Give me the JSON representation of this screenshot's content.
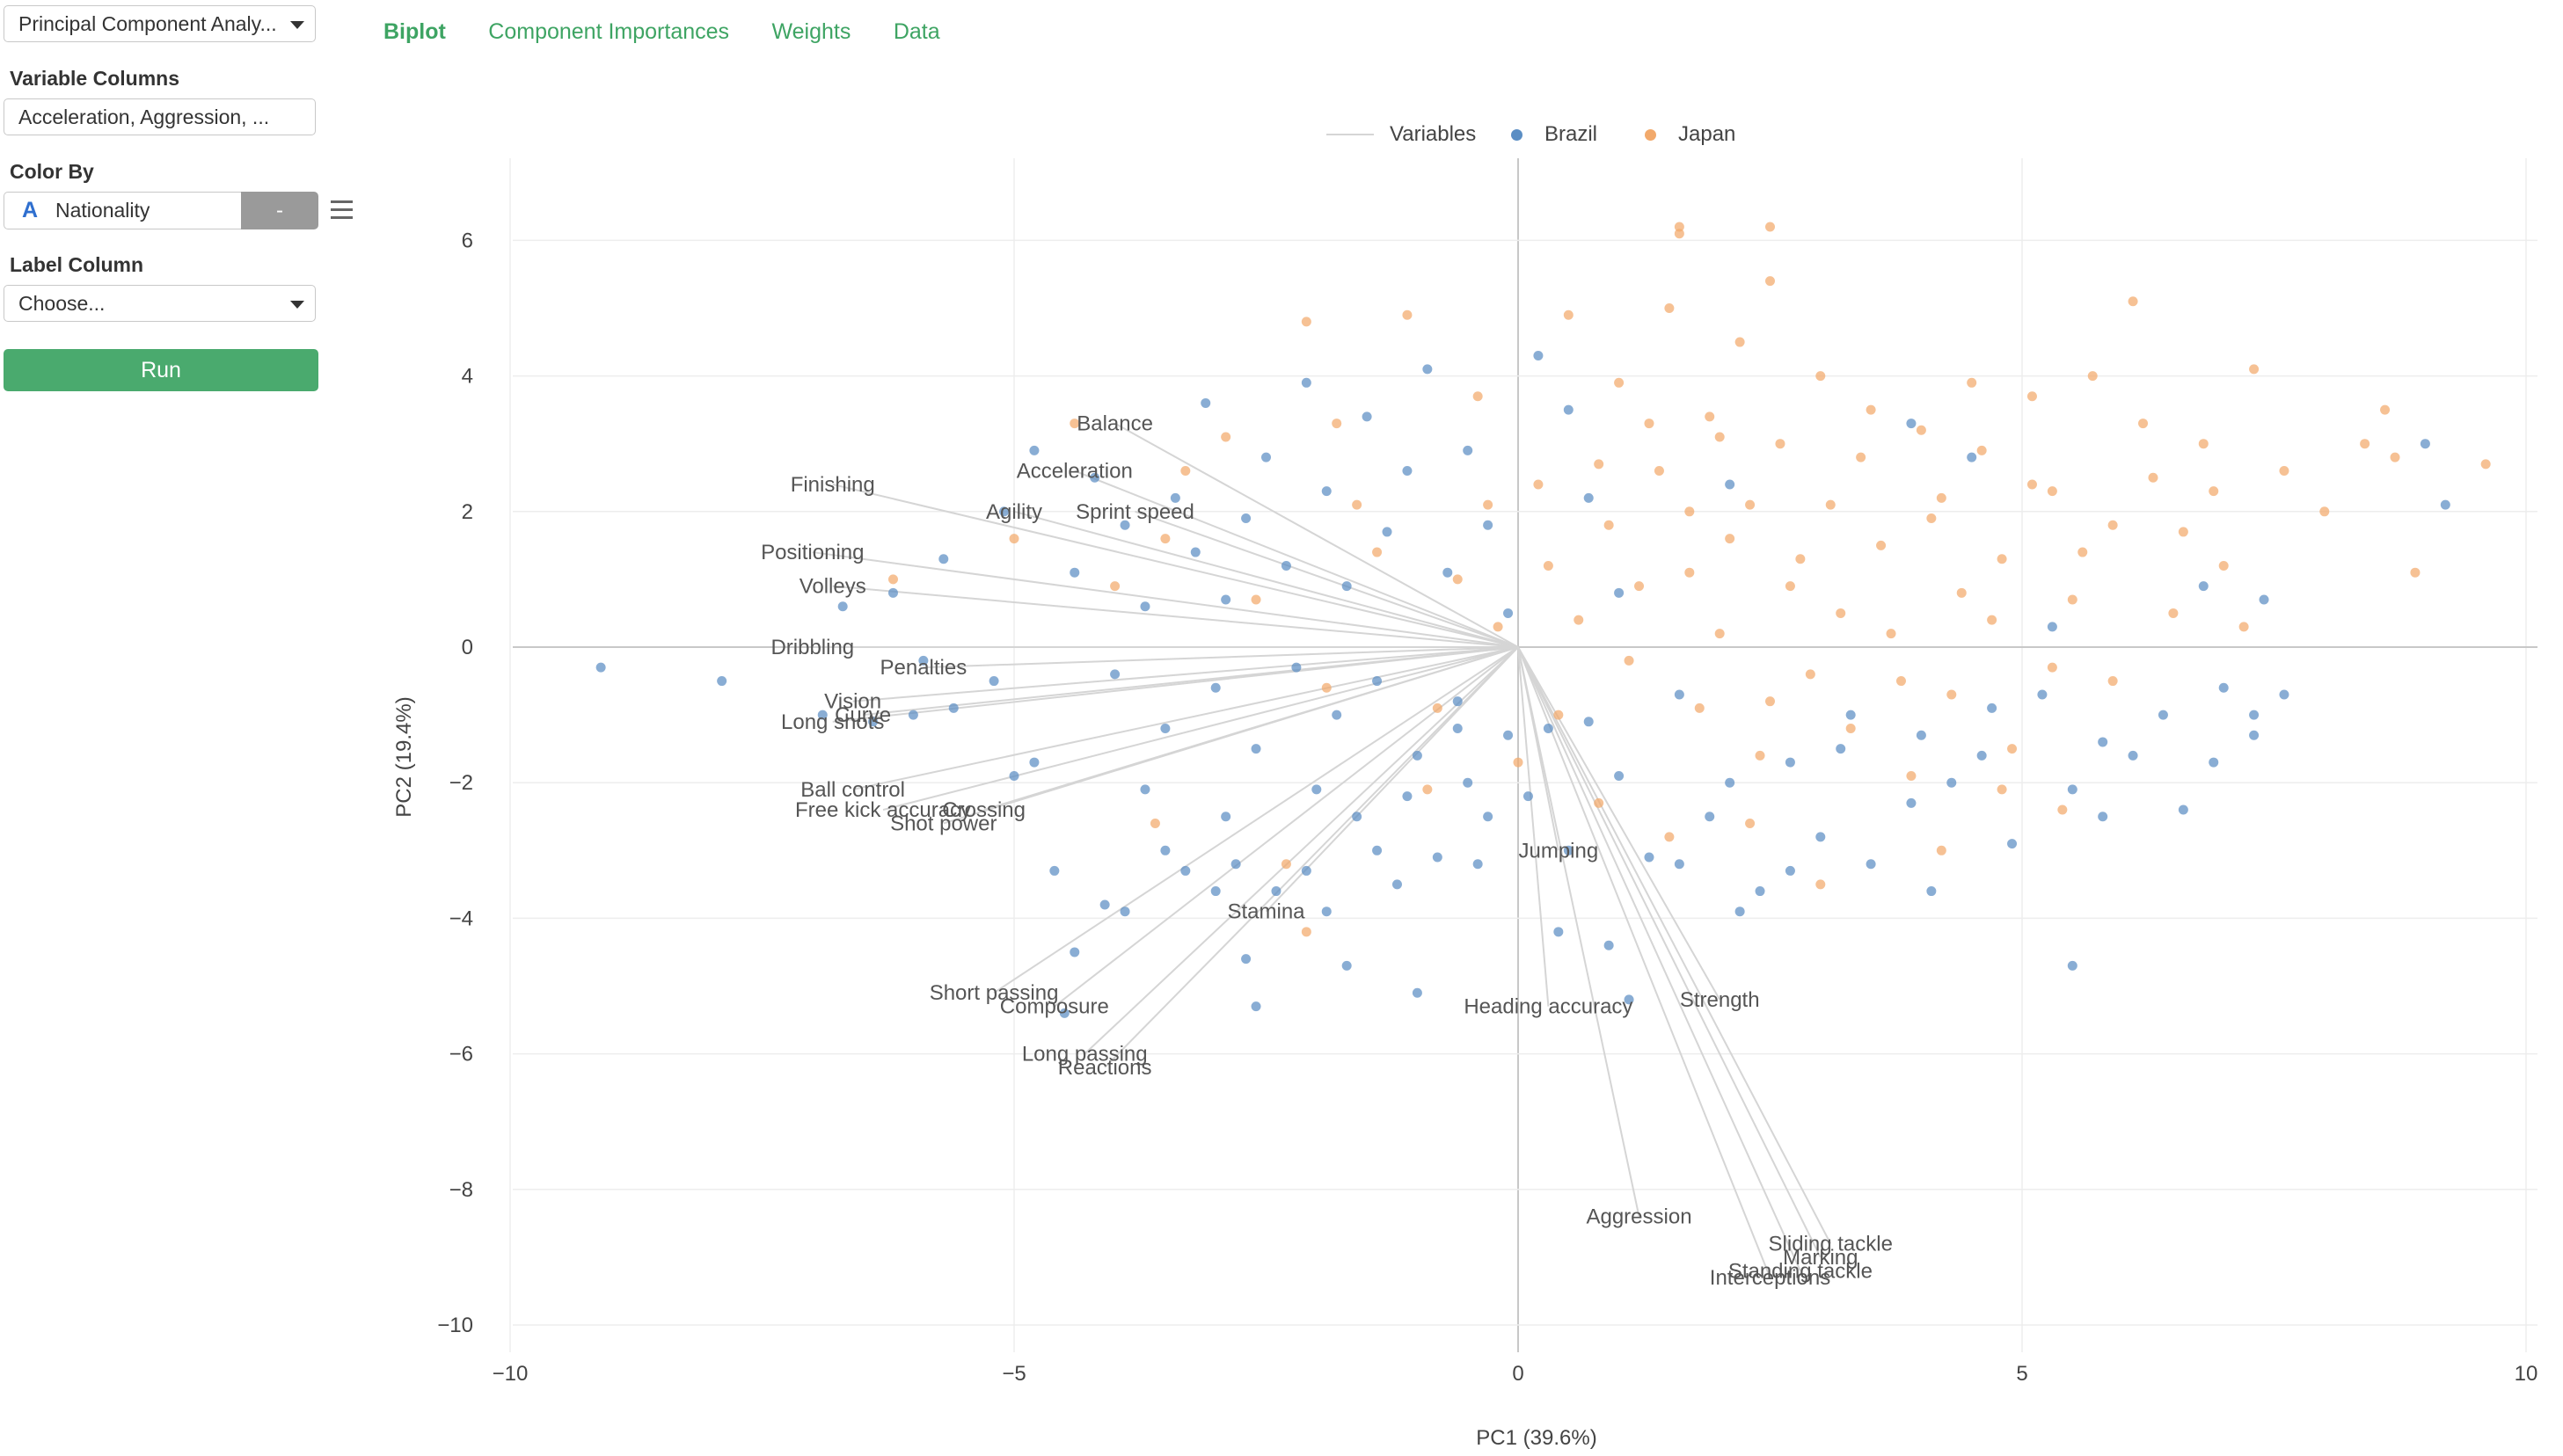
{
  "sidebar": {
    "analytics_type": "Principal Component Analy...",
    "variable_columns_label": "Variable Columns",
    "variable_columns_value": "Acceleration, Aggression, ...",
    "color_by_label": "Color By",
    "color_by_type_icon": "A",
    "color_by_value": "Nationality",
    "color_by_button": "-",
    "label_column_label": "Label Column",
    "label_column_value": "Choose...",
    "run_button": "Run"
  },
  "tabs": [
    {
      "label": "Biplot",
      "active": true
    },
    {
      "label": "Component Importances",
      "active": false
    },
    {
      "label": "Weights",
      "active": false
    },
    {
      "label": "Data",
      "active": false
    }
  ],
  "colors": {
    "accent": "#3ea463",
    "run_button": "#4aaa6e",
    "brazil": "#5b8ec4",
    "japan": "#f2a96b",
    "vector": "#d5d5d5"
  },
  "chart_data": {
    "type": "scatter",
    "title": "",
    "xlabel": "PC1 (39.6%)",
    "ylabel": "PC2 (19.4%)",
    "xlim": [
      -10.5,
      10.5
    ],
    "ylim": [
      -10.4,
      7.2
    ],
    "x_ticks": [
      -10,
      -5,
      0,
      5,
      10
    ],
    "y_ticks": [
      6,
      4,
      2,
      0,
      -2,
      -4,
      -6,
      -8,
      -10
    ],
    "x_tick_labels": [
      "−10",
      "−5",
      "0",
      "5",
      "10"
    ],
    "y_tick_labels": [
      "6",
      "4",
      "2",
      "0",
      "−2",
      "−4",
      "−6",
      "−8",
      "−10"
    ],
    "grid": true,
    "legend": {
      "placement": "top-center",
      "items": [
        "Variables",
        "Brazil",
        "Japan"
      ]
    },
    "series": [
      {
        "name": "Brazil",
        "color": "#5b8ec4",
        "points": [
          [
            -9.1,
            -0.3
          ],
          [
            -7.9,
            -0.5
          ],
          [
            -6.9,
            -1.0
          ],
          [
            -6.7,
            0.6
          ],
          [
            -6.4,
            -1.1
          ],
          [
            -6.0,
            -1.0
          ],
          [
            -5.9,
            -0.2
          ],
          [
            -5.6,
            -0.9
          ],
          [
            -5.2,
            -0.5
          ],
          [
            -5.0,
            -1.9
          ],
          [
            -4.8,
            -1.7
          ],
          [
            -4.6,
            -3.3
          ],
          [
            -4.5,
            -5.4
          ],
          [
            -4.4,
            -4.5
          ],
          [
            -4.1,
            -3.8
          ],
          [
            -3.9,
            -3.9
          ],
          [
            -3.7,
            -2.1
          ],
          [
            -3.5,
            -3.0
          ],
          [
            -3.3,
            -3.3
          ],
          [
            -3.0,
            -3.6
          ],
          [
            -2.8,
            -3.2
          ],
          [
            -2.7,
            -4.6
          ],
          [
            -2.6,
            -5.3
          ],
          [
            -2.4,
            -3.6
          ],
          [
            -2.1,
            -3.3
          ],
          [
            -1.9,
            -3.9
          ],
          [
            -1.6,
            -2.5
          ],
          [
            -1.4,
            -3.0
          ],
          [
            -1.1,
            -2.2
          ],
          [
            -1.0,
            -5.1
          ],
          [
            -0.8,
            -3.1
          ],
          [
            -0.6,
            -1.2
          ],
          [
            -0.4,
            -3.2
          ],
          [
            -0.3,
            -2.5
          ],
          [
            -0.1,
            -1.3
          ],
          [
            0.1,
            -2.2
          ],
          [
            0.3,
            -1.2
          ],
          [
            0.5,
            -3.0
          ],
          [
            0.7,
            -1.1
          ],
          [
            1.0,
            -1.9
          ],
          [
            1.1,
            -5.2
          ],
          [
            1.3,
            -3.1
          ],
          [
            1.6,
            -0.7
          ],
          [
            1.9,
            -2.5
          ],
          [
            2.1,
            -2.0
          ],
          [
            2.4,
            -3.6
          ],
          [
            2.7,
            -1.7
          ],
          [
            3.0,
            -2.8
          ],
          [
            3.2,
            -1.5
          ],
          [
            3.5,
            -3.2
          ],
          [
            3.9,
            -2.3
          ],
          [
            4.1,
            -3.6
          ],
          [
            4.3,
            -2.0
          ],
          [
            4.6,
            -1.6
          ],
          [
            4.9,
            -2.9
          ],
          [
            5.2,
            -0.7
          ],
          [
            5.5,
            -2.1
          ],
          [
            5.8,
            -2.5
          ],
          [
            6.1,
            -1.6
          ],
          [
            6.4,
            -1.0
          ],
          [
            6.6,
            -2.4
          ],
          [
            7.0,
            -0.6
          ],
          [
            7.3,
            -1.3
          ],
          [
            7.6,
            -0.7
          ],
          [
            9.2,
            2.1
          ],
          [
            9.0,
            3.0
          ],
          [
            5.5,
            -4.7
          ],
          [
            -6.2,
            0.8
          ],
          [
            -5.7,
            1.3
          ],
          [
            -5.1,
            2.0
          ],
          [
            -4.8,
            2.9
          ],
          [
            -4.4,
            1.1
          ],
          [
            -4.2,
            2.5
          ],
          [
            -3.9,
            1.8
          ],
          [
            -3.7,
            0.6
          ],
          [
            -3.4,
            2.2
          ],
          [
            -3.2,
            1.4
          ],
          [
            -3.1,
            3.6
          ],
          [
            -2.9,
            0.7
          ],
          [
            -2.7,
            1.9
          ],
          [
            -2.5,
            2.8
          ],
          [
            -2.3,
            1.2
          ],
          [
            -2.1,
            3.9
          ],
          [
            -1.9,
            2.3
          ],
          [
            -1.7,
            0.9
          ],
          [
            -1.5,
            3.4
          ],
          [
            -1.3,
            1.7
          ],
          [
            -1.1,
            2.6
          ],
          [
            -0.9,
            4.1
          ],
          [
            -0.7,
            1.1
          ],
          [
            -0.5,
            2.9
          ],
          [
            -0.3,
            1.8
          ],
          [
            -0.1,
            0.5
          ],
          [
            0.2,
            4.3
          ],
          [
            0.5,
            3.5
          ],
          [
            0.7,
            2.2
          ],
          [
            1.0,
            0.8
          ],
          [
            2.1,
            2.4
          ],
          [
            3.9,
            3.3
          ],
          [
            4.5,
            2.8
          ],
          [
            5.3,
            0.3
          ],
          [
            6.8,
            0.9
          ],
          [
            7.4,
            0.7
          ],
          [
            -4.0,
            -0.4
          ],
          [
            -3.5,
            -1.2
          ],
          [
            -3.0,
            -0.6
          ],
          [
            -2.6,
            -1.5
          ],
          [
            -2.2,
            -0.3
          ],
          [
            -1.8,
            -1.0
          ],
          [
            -1.4,
            -0.5
          ],
          [
            -1.0,
            -1.6
          ],
          [
            -0.6,
            -0.8
          ],
          [
            -2.9,
            -2.5
          ],
          [
            -2.0,
            -2.1
          ],
          [
            -1.2,
            -3.5
          ],
          [
            0.4,
            -4.2
          ],
          [
            0.9,
            -4.4
          ],
          [
            2.7,
            -3.3
          ],
          [
            3.3,
            -1.0
          ],
          [
            4.0,
            -1.3
          ],
          [
            4.7,
            -0.9
          ],
          [
            5.8,
            -1.4
          ],
          [
            6.9,
            -1.7
          ],
          [
            7.3,
            -1.0
          ],
          [
            2.2,
            -3.9
          ],
          [
            1.6,
            -3.2
          ],
          [
            -0.5,
            -2.0
          ],
          [
            -1.7,
            -4.7
          ]
        ]
      },
      {
        "name": "Japan",
        "color": "#f2a96b",
        "points": [
          [
            -6.2,
            1.0
          ],
          [
            -4.4,
            3.3
          ],
          [
            -3.5,
            1.6
          ],
          [
            -2.9,
            3.1
          ],
          [
            -2.3,
            -3.2
          ],
          [
            -2.1,
            4.8
          ],
          [
            -1.8,
            3.3
          ],
          [
            -1.6,
            2.1
          ],
          [
            -1.1,
            4.9
          ],
          [
            -0.9,
            -2.1
          ],
          [
            -0.4,
            3.7
          ],
          [
            -0.2,
            0.3
          ],
          [
            0.2,
            2.4
          ],
          [
            0.5,
            4.9
          ],
          [
            0.8,
            2.7
          ],
          [
            1.0,
            3.9
          ],
          [
            1.2,
            0.9
          ],
          [
            1.5,
            5.0
          ],
          [
            1.6,
            6.1
          ],
          [
            1.7,
            2.0
          ],
          [
            1.9,
            3.4
          ],
          [
            2.0,
            0.2
          ],
          [
            2.2,
            4.5
          ],
          [
            2.3,
            2.1
          ],
          [
            2.5,
            -0.8
          ],
          [
            2.5,
            5.4
          ],
          [
            2.6,
            3.0
          ],
          [
            2.8,
            1.3
          ],
          [
            3.0,
            4.0
          ],
          [
            3.2,
            0.5
          ],
          [
            3.4,
            2.8
          ],
          [
            3.6,
            1.5
          ],
          [
            3.8,
            -0.5
          ],
          [
            4.0,
            3.2
          ],
          [
            4.2,
            2.2
          ],
          [
            4.4,
            0.8
          ],
          [
            4.6,
            2.9
          ],
          [
            4.8,
            1.3
          ],
          [
            5.1,
            3.7
          ],
          [
            5.3,
            2.3
          ],
          [
            5.5,
            0.7
          ],
          [
            5.7,
            4.0
          ],
          [
            5.9,
            1.8
          ],
          [
            6.1,
            5.1
          ],
          [
            6.3,
            2.5
          ],
          [
            6.5,
            0.5
          ],
          [
            6.8,
            3.0
          ],
          [
            7.0,
            1.2
          ],
          [
            7.3,
            4.1
          ],
          [
            7.6,
            2.6
          ],
          [
            8.0,
            2.0
          ],
          [
            8.4,
            3.0
          ],
          [
            8.7,
            2.8
          ],
          [
            8.9,
            1.1
          ],
          [
            9.6,
            2.7
          ],
          [
            8.6,
            3.5
          ],
          [
            1.6,
            6.2
          ],
          [
            2.5,
            6.2
          ],
          [
            -2.1,
            -4.2
          ],
          [
            -3.6,
            -2.6
          ],
          [
            0.3,
            1.2
          ],
          [
            0.6,
            0.4
          ],
          [
            0.9,
            1.8
          ],
          [
            1.3,
            3.3
          ],
          [
            1.8,
            -0.9
          ],
          [
            2.1,
            1.6
          ],
          [
            2.4,
            -1.6
          ],
          [
            2.7,
            0.9
          ],
          [
            2.9,
            -0.4
          ],
          [
            3.1,
            2.1
          ],
          [
            3.3,
            -1.2
          ],
          [
            3.5,
            3.5
          ],
          [
            3.7,
            0.2
          ],
          [
            3.9,
            -1.9
          ],
          [
            4.1,
            1.9
          ],
          [
            4.3,
            -0.7
          ],
          [
            4.5,
            3.9
          ],
          [
            4.7,
            0.4
          ],
          [
            4.9,
            -1.5
          ],
          [
            5.1,
            2.4
          ],
          [
            5.3,
            -0.3
          ],
          [
            5.6,
            1.4
          ],
          [
            5.9,
            -0.5
          ],
          [
            6.2,
            3.3
          ],
          [
            6.6,
            1.7
          ],
          [
            6.9,
            2.3
          ],
          [
            7.2,
            0.3
          ],
          [
            0.4,
            -1.0
          ],
          [
            1.1,
            -0.2
          ],
          [
            1.4,
            2.6
          ],
          [
            1.7,
            1.1
          ],
          [
            2.0,
            3.1
          ],
          [
            -0.3,
            2.1
          ],
          [
            -0.6,
            1.0
          ],
          [
            -1.4,
            1.4
          ],
          [
            -2.6,
            0.7
          ],
          [
            -3.3,
            2.6
          ],
          [
            -4.0,
            0.9
          ],
          [
            -5.0,
            1.6
          ],
          [
            -1.9,
            -0.6
          ],
          [
            -0.8,
            -0.9
          ],
          [
            0.0,
            -1.7
          ],
          [
            0.8,
            -2.3
          ],
          [
            1.5,
            -2.8
          ],
          [
            2.3,
            -2.6
          ],
          [
            3.0,
            -3.5
          ],
          [
            4.2,
            -3.0
          ],
          [
            4.8,
            -2.1
          ],
          [
            5.4,
            -2.4
          ]
        ]
      }
    ],
    "vectors": [
      {
        "name": "Acceleration",
        "x": -4.4,
        "y": 2.6
      },
      {
        "name": "Aggression",
        "x": 1.2,
        "y": -8.4
      },
      {
        "name": "Agility",
        "x": -5.0,
        "y": 2.0
      },
      {
        "name": "Balance",
        "x": -4.0,
        "y": 3.3
      },
      {
        "name": "Ball control",
        "x": -6.6,
        "y": -2.1
      },
      {
        "name": "Composure",
        "x": -4.6,
        "y": -5.3
      },
      {
        "name": "Crossing",
        "x": -5.3,
        "y": -2.4
      },
      {
        "name": "Curve",
        "x": -6.5,
        "y": -1.0
      },
      {
        "name": "Dribbling",
        "x": -7.0,
        "y": 0.0
      },
      {
        "name": "Finishing",
        "x": -6.8,
        "y": 2.4
      },
      {
        "name": "Free kick accuracy",
        "x": -6.3,
        "y": -2.4
      },
      {
        "name": "Heading accuracy",
        "x": 0.3,
        "y": -5.3
      },
      {
        "name": "Interceptions",
        "x": 2.5,
        "y": -9.3
      },
      {
        "name": "Jumping",
        "x": 0.4,
        "y": -3.0
      },
      {
        "name": "Long passing",
        "x": -4.3,
        "y": -6.0
      },
      {
        "name": "Long shots",
        "x": -6.8,
        "y": -1.1
      },
      {
        "name": "Marking",
        "x": 3.0,
        "y": -9.0
      },
      {
        "name": "Penalties",
        "x": -5.9,
        "y": -0.3
      },
      {
        "name": "Positioning",
        "x": -7.0,
        "y": 1.4
      },
      {
        "name": "Reactions",
        "x": -4.1,
        "y": -6.2
      },
      {
        "name": "Short passing",
        "x": -5.2,
        "y": -5.1
      },
      {
        "name": "Shot power",
        "x": -5.7,
        "y": -2.6
      },
      {
        "name": "Sliding tackle",
        "x": 3.1,
        "y": -8.8
      },
      {
        "name": "Sprint speed",
        "x": -3.8,
        "y": 2.0
      },
      {
        "name": "Stamina",
        "x": -2.5,
        "y": -3.9
      },
      {
        "name": "Standing tackle",
        "x": 2.8,
        "y": -9.2
      },
      {
        "name": "Strength",
        "x": 2.0,
        "y": -5.2
      },
      {
        "name": "Vision",
        "x": -6.6,
        "y": -0.8
      },
      {
        "name": "Volleys",
        "x": -6.8,
        "y": 0.9
      }
    ]
  }
}
